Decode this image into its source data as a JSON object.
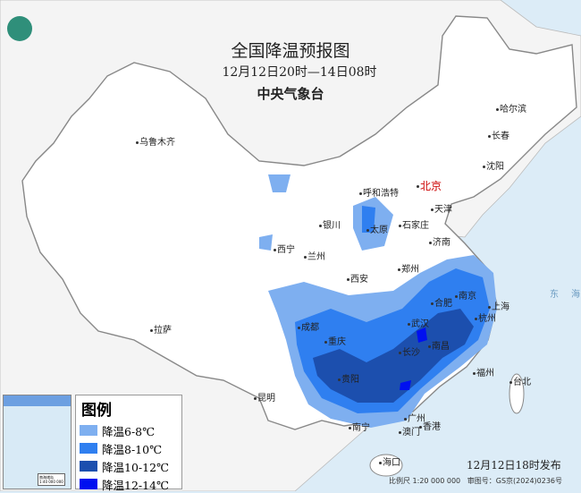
{
  "title": "全国降温预报图",
  "period": "12月12日20时—14日08时",
  "issuer": "中央气象台",
  "legend": {
    "title": "图例",
    "items": [
      {
        "label": "降温6-8℃",
        "color": "#7eaff0"
      },
      {
        "label": "降温8-10℃",
        "color": "#2f7ff0"
      },
      {
        "label": "降温10-12℃",
        "color": "#1c4fae"
      },
      {
        "label": "降温12-14℃",
        "color": "#0010f0"
      }
    ]
  },
  "cities": [
    {
      "name": "乌鲁木齐"
    },
    {
      "name": "哈尔滨"
    },
    {
      "name": "长春"
    },
    {
      "name": "沈阳"
    },
    {
      "name": "呼和浩特"
    },
    {
      "name": "北京",
      "capital": true
    },
    {
      "name": "天津"
    },
    {
      "name": "银川"
    },
    {
      "name": "太原"
    },
    {
      "name": "石家庄"
    },
    {
      "name": "济南"
    },
    {
      "name": "西宁"
    },
    {
      "name": "兰州"
    },
    {
      "name": "郑州"
    },
    {
      "name": "西安"
    },
    {
      "name": "南京"
    },
    {
      "name": "合肥"
    },
    {
      "name": "上海"
    },
    {
      "name": "杭州"
    },
    {
      "name": "成都"
    },
    {
      "name": "武汉"
    },
    {
      "name": "重庆"
    },
    {
      "name": "南昌"
    },
    {
      "name": "长沙"
    },
    {
      "name": "拉萨"
    },
    {
      "name": "福州"
    },
    {
      "name": "台北"
    },
    {
      "name": "贵阳"
    },
    {
      "name": "昆明"
    },
    {
      "name": "广州"
    },
    {
      "name": "香港"
    },
    {
      "name": "澳门"
    },
    {
      "name": "南宁"
    },
    {
      "name": "海口"
    }
  ],
  "sea_label": "东海",
  "published": "12月12日18时发布",
  "footer": {
    "scale": "比例尺 1:20 000 000",
    "review": "审图号：GS京(2024)0236号"
  },
  "colors": {
    "sea": "#dcecf7",
    "land": "#ffffff",
    "neighbor": "#f2f2f2"
  }
}
